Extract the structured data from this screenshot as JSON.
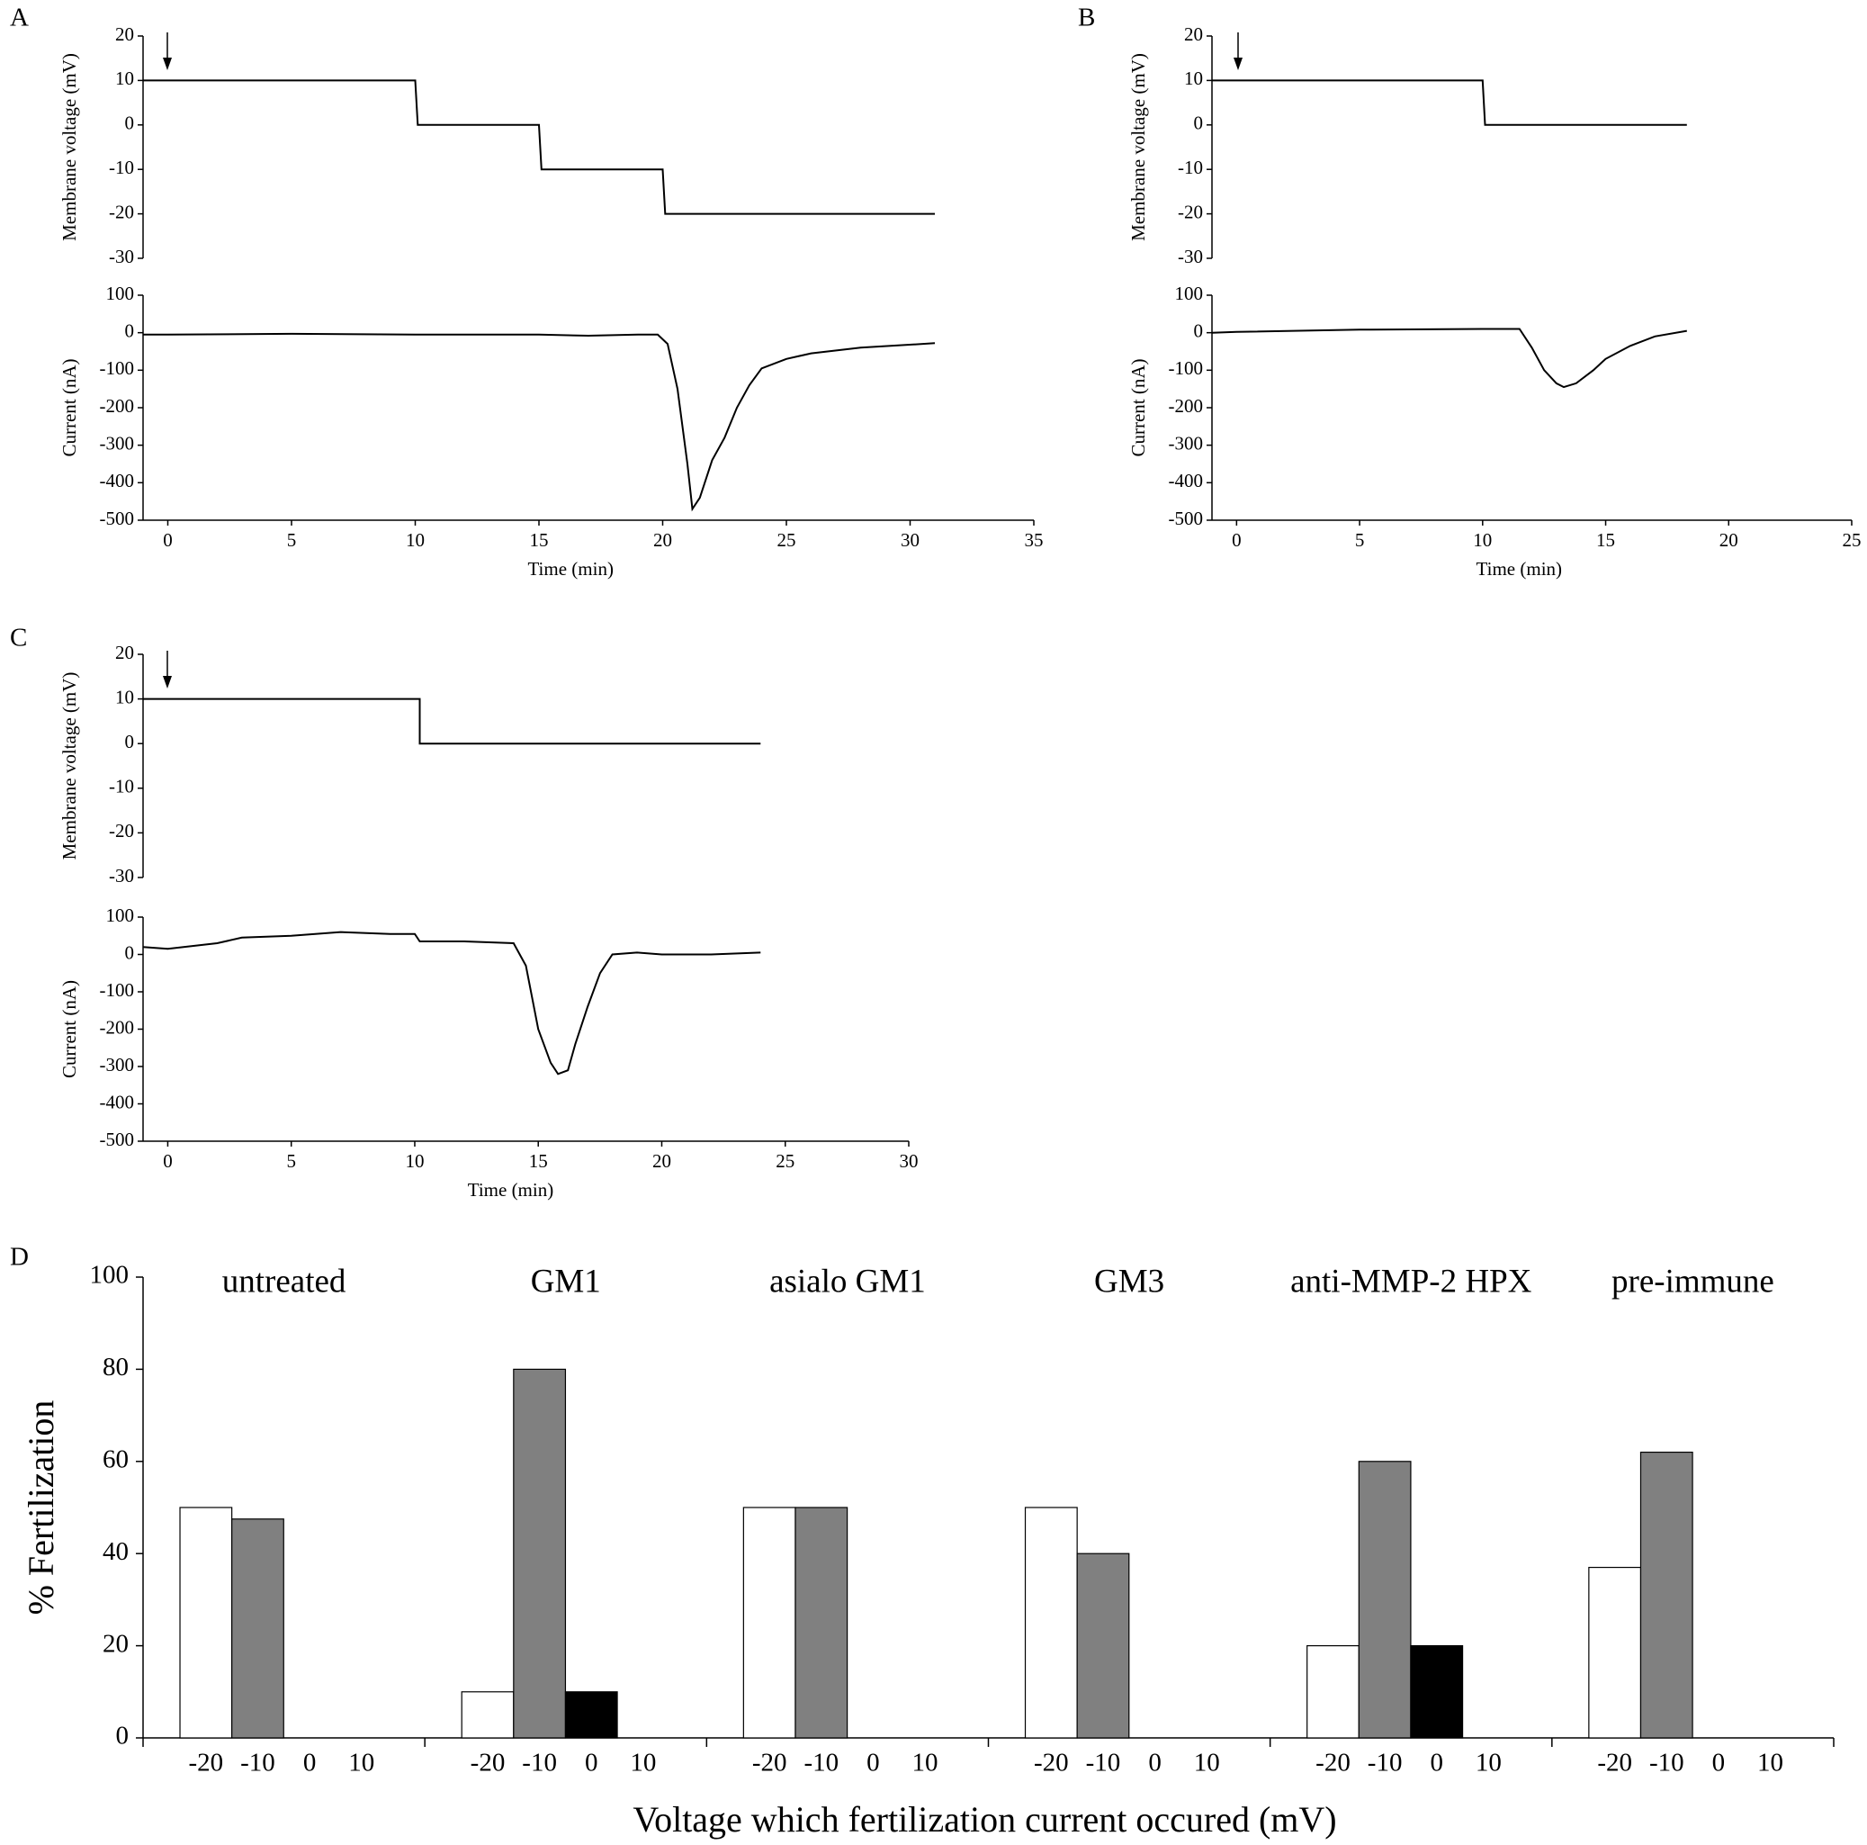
{
  "chart_data": [
    {
      "type": "line",
      "panel_label": "A",
      "y_label": "Membrane voltage (mV)",
      "color": "#000000",
      "x": [
        -1,
        10,
        10.1,
        15,
        15.1,
        20,
        20.1,
        31
      ],
      "values": [
        10,
        10,
        0,
        0,
        -10,
        -10,
        -20,
        -20
      ],
      "xlim": [
        -1,
        35
      ],
      "ylim": [
        -30,
        20
      ],
      "yticks": [
        -30,
        -20,
        -10,
        0,
        10,
        20
      ]
    },
    {
      "type": "line",
      "x_label": "Time (min)",
      "y_label": "Current (nA)",
      "color": "#000000",
      "x": [
        -1,
        0,
        5,
        10,
        15,
        17,
        19,
        19.8,
        20.2,
        20.6,
        21,
        21.2,
        21.5,
        22,
        22.5,
        23,
        23.5,
        24,
        25,
        26,
        28,
        31
      ],
      "values": [
        -5,
        -5,
        -3,
        -5,
        -5,
        -8,
        -5,
        -5,
        -30,
        -150,
        -350,
        -470,
        -440,
        -340,
        -280,
        -200,
        -140,
        -95,
        -70,
        -55,
        -40,
        -28
      ],
      "xlim": [
        -1,
        35
      ],
      "xticks": [
        0,
        5,
        10,
        15,
        20,
        25,
        30,
        35
      ],
      "ylim": [
        -500,
        100
      ],
      "yticks": [
        -500,
        -400,
        -300,
        -200,
        -100,
        0,
        100
      ]
    },
    {
      "type": "line",
      "panel_label": "B",
      "y_label": "Membrane voltage (mV)",
      "color": "#000000",
      "x": [
        -1,
        10,
        10.1,
        18.3
      ],
      "values": [
        10,
        10,
        0,
        0
      ],
      "xlim": [
        -1,
        25
      ],
      "ylim": [
        -30,
        20
      ],
      "yticks": [
        -30,
        -20,
        -10,
        0,
        10,
        20
      ]
    },
    {
      "type": "line",
      "x_label": "Time (min)",
      "y_label": "Current (nA)",
      "color": "#000000",
      "x": [
        -1,
        0,
        5,
        10,
        11.5,
        12,
        12.5,
        13,
        13.3,
        13.8,
        14.5,
        15,
        16,
        17,
        18.3
      ],
      "values": [
        0,
        2,
        8,
        10,
        10,
        -40,
        -100,
        -135,
        -145,
        -135,
        -100,
        -70,
        -35,
        -10,
        5
      ],
      "xlim": [
        -1,
        25
      ],
      "xticks": [
        0,
        5,
        10,
        15,
        20,
        25
      ],
      "ylim": [
        -500,
        100
      ],
      "yticks": [
        -500,
        -400,
        -300,
        -200,
        -100,
        0,
        100
      ]
    },
    {
      "type": "line",
      "panel_label": "C",
      "y_label": "Membrane voltage (mV)",
      "color": "#000000",
      "x": [
        -1,
        10.2,
        10.2,
        24
      ],
      "values": [
        10,
        10,
        0,
        0
      ],
      "xlim": [
        -1,
        30
      ],
      "ylim": [
        -30,
        20
      ],
      "yticks": [
        -30,
        -20,
        -10,
        0,
        10,
        20
      ]
    },
    {
      "type": "line",
      "x_label": "Time (min)",
      "y_label": "Current (nA)",
      "color": "#000000",
      "x": [
        -1,
        0,
        2,
        3,
        5,
        7,
        9,
        10,
        10.2,
        12,
        14,
        14.5,
        15,
        15.5,
        15.8,
        16.2,
        16.5,
        17,
        17.5,
        18,
        19,
        20,
        22,
        24
      ],
      "values": [
        20,
        15,
        30,
        45,
        50,
        60,
        55,
        55,
        35,
        35,
        30,
        -30,
        -200,
        -290,
        -320,
        -310,
        -240,
        -140,
        -50,
        0,
        5,
        0,
        0,
        5
      ],
      "xlim": [
        -1,
        30
      ],
      "xticks": [
        0,
        5,
        10,
        15,
        20,
        25,
        30
      ],
      "ylim": [
        -500,
        100
      ],
      "yticks": [
        -500,
        -400,
        -300,
        -200,
        -100,
        0,
        100
      ]
    },
    {
      "type": "grouped_bar",
      "panel_label": "D",
      "x_label": "Voltage which fertilization current occured (mV)",
      "y_label": "% Fertilization",
      "groups": [
        "untreated",
        "GM1",
        "asialo GM1",
        "GM3",
        "anti-MMP-2 HPX",
        "pre-immune"
      ],
      "subcategories": [
        "-20",
        "-10",
        "0",
        "10"
      ],
      "series": [
        {
          "color": "#ffffff",
          "values": [
            50,
            10,
            50,
            50,
            20,
            37
          ]
        },
        {
          "color": "#808080",
          "values": [
            47.5,
            80,
            50,
            40,
            60,
            62
          ]
        },
        {
          "color": "#000000",
          "values": [
            0,
            10,
            0,
            0,
            20,
            0
          ]
        },
        {
          "color": "#808080",
          "values": [
            0,
            0,
            0,
            0,
            0,
            0
          ]
        }
      ],
      "ylim": [
        0,
        100
      ],
      "yticks": [
        0,
        20,
        40,
        60,
        80,
        100
      ]
    }
  ]
}
